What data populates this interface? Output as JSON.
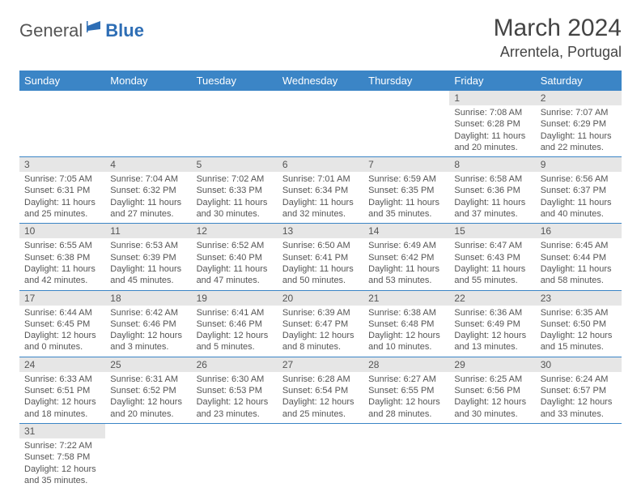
{
  "logo": {
    "part1": "General",
    "part2": "Blue"
  },
  "title": "March 2024",
  "location": "Arrentela, Portugal",
  "colors": {
    "header_bg": "#3b85c6",
    "header_text": "#ffffff",
    "daynum_bg": "#e6e6e6",
    "border": "#3b85c6",
    "body_text": "#555555",
    "logo_blue": "#2e6eb5"
  },
  "weekdays": [
    "Sunday",
    "Monday",
    "Tuesday",
    "Wednesday",
    "Thursday",
    "Friday",
    "Saturday"
  ],
  "weeks": [
    [
      null,
      null,
      null,
      null,
      null,
      {
        "n": "1",
        "sr": "Sunrise: 7:08 AM",
        "ss": "Sunset: 6:28 PM",
        "d1": "Daylight: 11 hours",
        "d2": "and 20 minutes."
      },
      {
        "n": "2",
        "sr": "Sunrise: 7:07 AM",
        "ss": "Sunset: 6:29 PM",
        "d1": "Daylight: 11 hours",
        "d2": "and 22 minutes."
      }
    ],
    [
      {
        "n": "3",
        "sr": "Sunrise: 7:05 AM",
        "ss": "Sunset: 6:31 PM",
        "d1": "Daylight: 11 hours",
        "d2": "and 25 minutes."
      },
      {
        "n": "4",
        "sr": "Sunrise: 7:04 AM",
        "ss": "Sunset: 6:32 PM",
        "d1": "Daylight: 11 hours",
        "d2": "and 27 minutes."
      },
      {
        "n": "5",
        "sr": "Sunrise: 7:02 AM",
        "ss": "Sunset: 6:33 PM",
        "d1": "Daylight: 11 hours",
        "d2": "and 30 minutes."
      },
      {
        "n": "6",
        "sr": "Sunrise: 7:01 AM",
        "ss": "Sunset: 6:34 PM",
        "d1": "Daylight: 11 hours",
        "d2": "and 32 minutes."
      },
      {
        "n": "7",
        "sr": "Sunrise: 6:59 AM",
        "ss": "Sunset: 6:35 PM",
        "d1": "Daylight: 11 hours",
        "d2": "and 35 minutes."
      },
      {
        "n": "8",
        "sr": "Sunrise: 6:58 AM",
        "ss": "Sunset: 6:36 PM",
        "d1": "Daylight: 11 hours",
        "d2": "and 37 minutes."
      },
      {
        "n": "9",
        "sr": "Sunrise: 6:56 AM",
        "ss": "Sunset: 6:37 PM",
        "d1": "Daylight: 11 hours",
        "d2": "and 40 minutes."
      }
    ],
    [
      {
        "n": "10",
        "sr": "Sunrise: 6:55 AM",
        "ss": "Sunset: 6:38 PM",
        "d1": "Daylight: 11 hours",
        "d2": "and 42 minutes."
      },
      {
        "n": "11",
        "sr": "Sunrise: 6:53 AM",
        "ss": "Sunset: 6:39 PM",
        "d1": "Daylight: 11 hours",
        "d2": "and 45 minutes."
      },
      {
        "n": "12",
        "sr": "Sunrise: 6:52 AM",
        "ss": "Sunset: 6:40 PM",
        "d1": "Daylight: 11 hours",
        "d2": "and 47 minutes."
      },
      {
        "n": "13",
        "sr": "Sunrise: 6:50 AM",
        "ss": "Sunset: 6:41 PM",
        "d1": "Daylight: 11 hours",
        "d2": "and 50 minutes."
      },
      {
        "n": "14",
        "sr": "Sunrise: 6:49 AM",
        "ss": "Sunset: 6:42 PM",
        "d1": "Daylight: 11 hours",
        "d2": "and 53 minutes."
      },
      {
        "n": "15",
        "sr": "Sunrise: 6:47 AM",
        "ss": "Sunset: 6:43 PM",
        "d1": "Daylight: 11 hours",
        "d2": "and 55 minutes."
      },
      {
        "n": "16",
        "sr": "Sunrise: 6:45 AM",
        "ss": "Sunset: 6:44 PM",
        "d1": "Daylight: 11 hours",
        "d2": "and 58 minutes."
      }
    ],
    [
      {
        "n": "17",
        "sr": "Sunrise: 6:44 AM",
        "ss": "Sunset: 6:45 PM",
        "d1": "Daylight: 12 hours",
        "d2": "and 0 minutes."
      },
      {
        "n": "18",
        "sr": "Sunrise: 6:42 AM",
        "ss": "Sunset: 6:46 PM",
        "d1": "Daylight: 12 hours",
        "d2": "and 3 minutes."
      },
      {
        "n": "19",
        "sr": "Sunrise: 6:41 AM",
        "ss": "Sunset: 6:46 PM",
        "d1": "Daylight: 12 hours",
        "d2": "and 5 minutes."
      },
      {
        "n": "20",
        "sr": "Sunrise: 6:39 AM",
        "ss": "Sunset: 6:47 PM",
        "d1": "Daylight: 12 hours",
        "d2": "and 8 minutes."
      },
      {
        "n": "21",
        "sr": "Sunrise: 6:38 AM",
        "ss": "Sunset: 6:48 PM",
        "d1": "Daylight: 12 hours",
        "d2": "and 10 minutes."
      },
      {
        "n": "22",
        "sr": "Sunrise: 6:36 AM",
        "ss": "Sunset: 6:49 PM",
        "d1": "Daylight: 12 hours",
        "d2": "and 13 minutes."
      },
      {
        "n": "23",
        "sr": "Sunrise: 6:35 AM",
        "ss": "Sunset: 6:50 PM",
        "d1": "Daylight: 12 hours",
        "d2": "and 15 minutes."
      }
    ],
    [
      {
        "n": "24",
        "sr": "Sunrise: 6:33 AM",
        "ss": "Sunset: 6:51 PM",
        "d1": "Daylight: 12 hours",
        "d2": "and 18 minutes."
      },
      {
        "n": "25",
        "sr": "Sunrise: 6:31 AM",
        "ss": "Sunset: 6:52 PM",
        "d1": "Daylight: 12 hours",
        "d2": "and 20 minutes."
      },
      {
        "n": "26",
        "sr": "Sunrise: 6:30 AM",
        "ss": "Sunset: 6:53 PM",
        "d1": "Daylight: 12 hours",
        "d2": "and 23 minutes."
      },
      {
        "n": "27",
        "sr": "Sunrise: 6:28 AM",
        "ss": "Sunset: 6:54 PM",
        "d1": "Daylight: 12 hours",
        "d2": "and 25 minutes."
      },
      {
        "n": "28",
        "sr": "Sunrise: 6:27 AM",
        "ss": "Sunset: 6:55 PM",
        "d1": "Daylight: 12 hours",
        "d2": "and 28 minutes."
      },
      {
        "n": "29",
        "sr": "Sunrise: 6:25 AM",
        "ss": "Sunset: 6:56 PM",
        "d1": "Daylight: 12 hours",
        "d2": "and 30 minutes."
      },
      {
        "n": "30",
        "sr": "Sunrise: 6:24 AM",
        "ss": "Sunset: 6:57 PM",
        "d1": "Daylight: 12 hours",
        "d2": "and 33 minutes."
      }
    ],
    [
      {
        "n": "31",
        "sr": "Sunrise: 7:22 AM",
        "ss": "Sunset: 7:58 PM",
        "d1": "Daylight: 12 hours",
        "d2": "and 35 minutes."
      },
      null,
      null,
      null,
      null,
      null,
      null
    ]
  ]
}
